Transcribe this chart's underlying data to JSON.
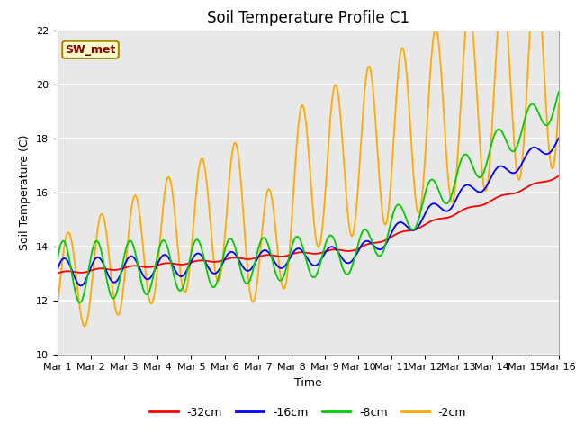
{
  "title": "Soil Temperature Profile C1",
  "xlabel": "Time",
  "ylabel": "Soil Temperature (C)",
  "ylim": [
    10,
    22
  ],
  "xlim": [
    0,
    15
  ],
  "yticks": [
    10,
    12,
    14,
    16,
    18,
    20,
    22
  ],
  "xtick_labels": [
    "Mar 1",
    "Mar 2",
    "Mar 3",
    "Mar 4",
    "Mar 5",
    "Mar 6",
    "Mar 7",
    "Mar 8",
    "Mar 9",
    "Mar 10",
    "Mar 11",
    "Mar 12",
    "Mar 13",
    "Mar 14",
    "Mar 15",
    "Mar 16"
  ],
  "annotation_text": "SW_met",
  "annotation_bg": "#ffffcc",
  "annotation_border": "#aa8800",
  "colors": {
    "-32cm": "#ff0000",
    "-16cm": "#0000ff",
    "-8cm": "#00cc00",
    "-2cm": "#ffaa00"
  },
  "plot_bg": "#e8e8e8",
  "grid_color": "#ffffff",
  "title_fontsize": 12,
  "tick_fontsize": 8,
  "label_fontsize": 9
}
